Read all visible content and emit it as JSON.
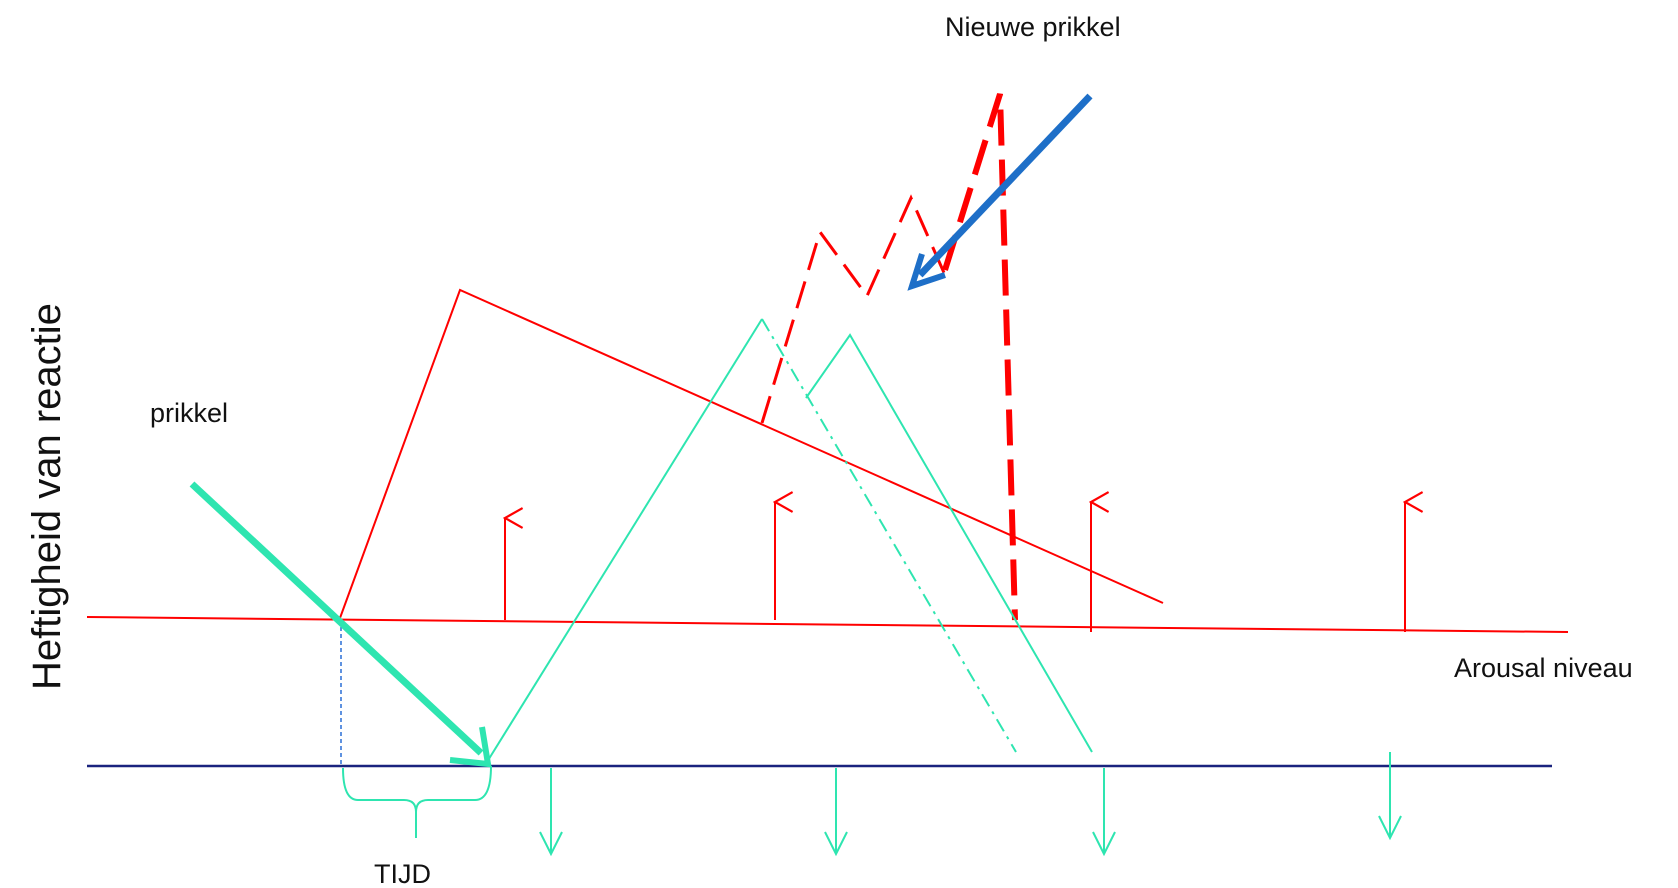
{
  "labels": {
    "new_stimulus": "Nieuwe prikkel",
    "stimulus": "prikkel",
    "y_axis": "Heftigheid van reactie",
    "arousal_level": "Arousal niveau",
    "time": "TIJD"
  },
  "colors": {
    "red": "#ff0000",
    "teal": "#2ee5b0",
    "navy": "#1a237e",
    "blue_arrow": "#1e6fc8",
    "dash_blue": "#2a6fd6"
  }
}
